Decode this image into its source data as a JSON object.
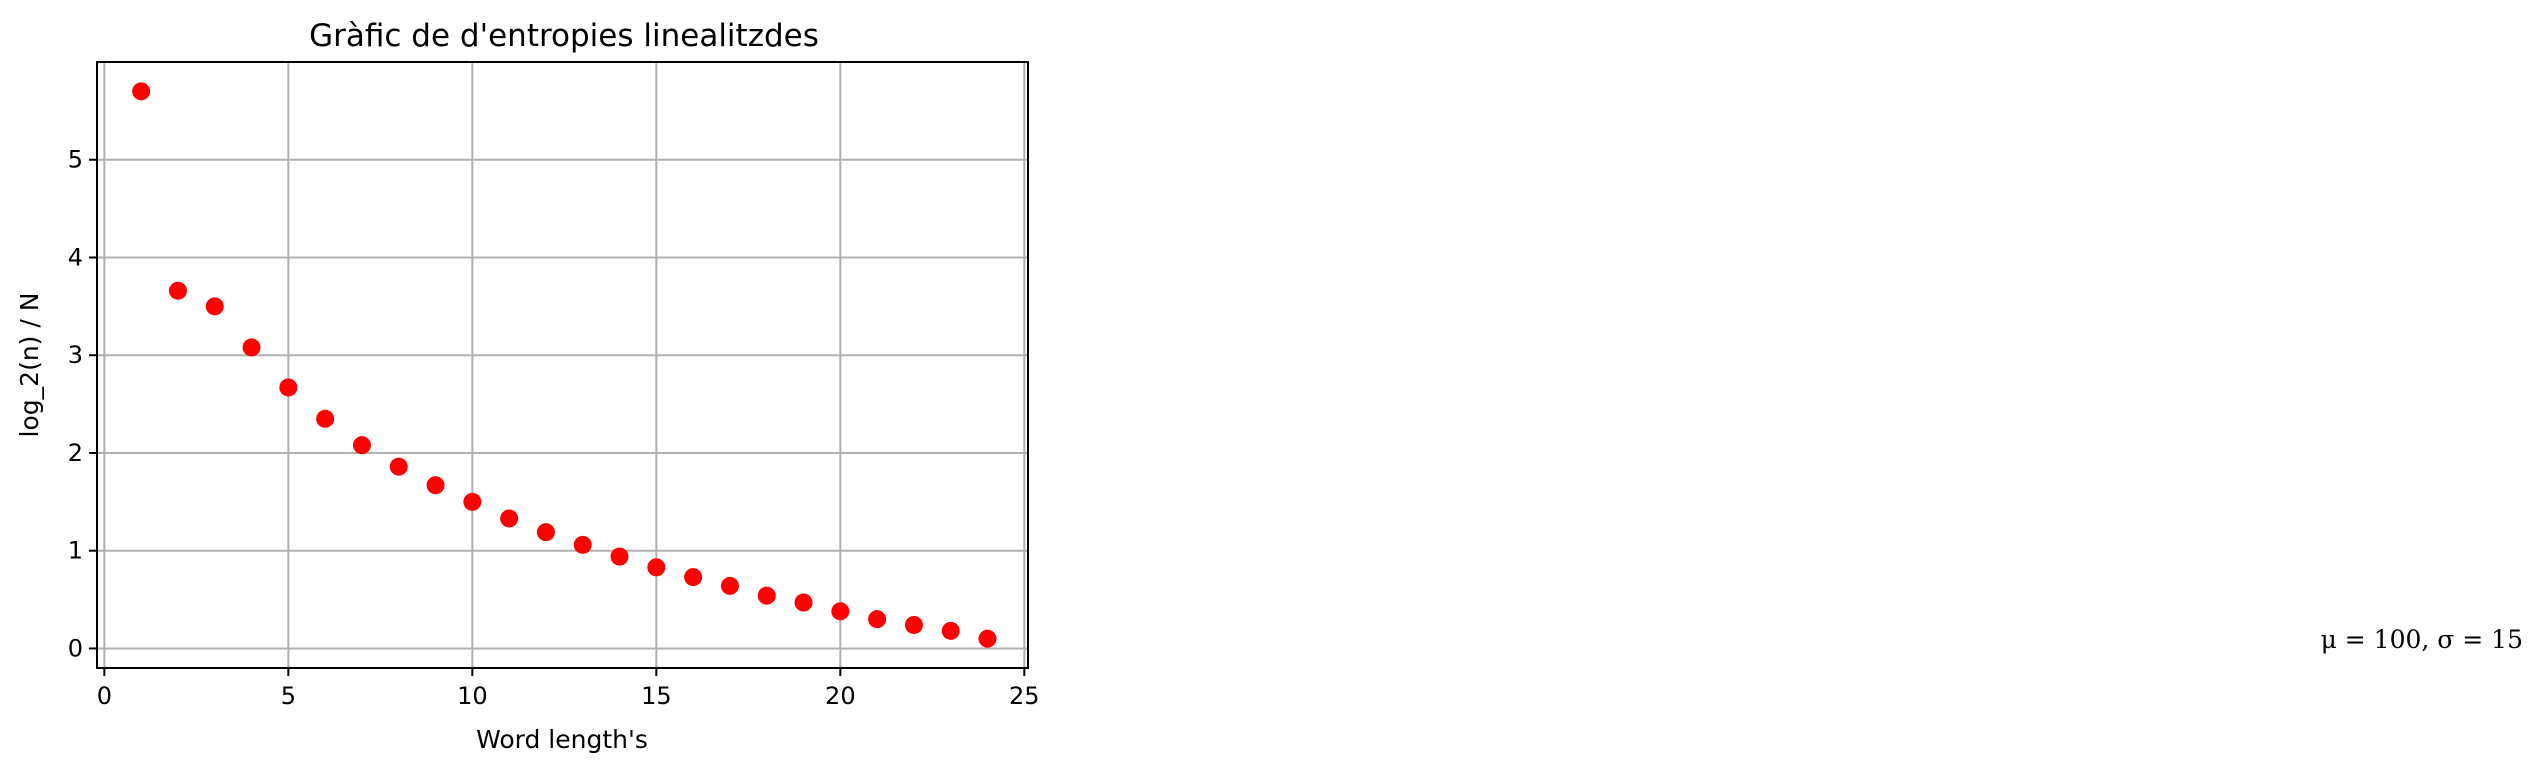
{
  "chart_data": {
    "type": "scatter",
    "title": "Gràfic de d'entropies linealitzdes",
    "xlabel": "Word length's",
    "ylabel": "log_2(n) / N",
    "xlim": [
      -0.2,
      25.1
    ],
    "ylim": [
      -0.2,
      6.0
    ],
    "xticks": [
      0,
      5,
      10,
      15,
      20,
      25
    ],
    "yticks": [
      0,
      1,
      2,
      3,
      4,
      5
    ],
    "grid": true,
    "marker_color": "#ff0000",
    "x": [
      1,
      2,
      3,
      4,
      5,
      6,
      7,
      8,
      9,
      10,
      11,
      12,
      13,
      14,
      15,
      16,
      17,
      18,
      19,
      20,
      21,
      22,
      23,
      24
    ],
    "y": [
      5.7,
      3.66,
      3.5,
      3.08,
      2.67,
      2.35,
      2.08,
      1.86,
      1.67,
      1.5,
      1.33,
      1.19,
      1.06,
      0.94,
      0.83,
      0.73,
      0.64,
      0.54,
      0.47,
      0.38,
      0.3,
      0.24,
      0.18,
      0.1
    ],
    "annotation": "μ = 100,  σ = 15"
  }
}
